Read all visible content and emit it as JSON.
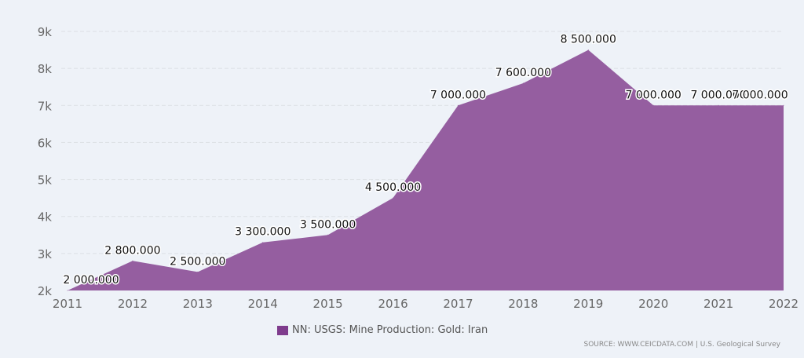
{
  "chart_data": {
    "type": "area",
    "categories": [
      "2011",
      "2012",
      "2013",
      "2014",
      "2015",
      "2016",
      "2017",
      "2018",
      "2019",
      "2020",
      "2021",
      "2022"
    ],
    "series": [
      {
        "name": "NN: USGS: Mine Production: Gold: Iran",
        "values": [
          2000,
          2800,
          2500,
          3300,
          3500,
          4500,
          7000,
          7600,
          8500,
          7000,
          7000,
          7000
        ]
      }
    ],
    "data_labels": [
      "2 000.000",
      "2 800.000",
      "2 500.000",
      "3 300.000",
      "3 500.000",
      "4 500.000",
      "7 000.000",
      "7 600.000",
      "8 500.000",
      "7 000.000",
      "7 000.000",
      "7 000.000"
    ],
    "yticks": [
      2000,
      3000,
      4000,
      5000,
      6000,
      7000,
      8000,
      9000
    ],
    "ytick_labels": [
      "2k",
      "3k",
      "4k",
      "5k",
      "6k",
      "7k",
      "8k",
      "9k"
    ],
    "ylim": [
      2000,
      9000
    ],
    "grid": true,
    "legend": "bottom-center",
    "color": "#955ea0"
  },
  "legend_label": "NN: USGS: Mine Production: Gold: Iran",
  "source": "SOURCE: WWW.CEICDATA.COM | U.S. Geological Survey"
}
